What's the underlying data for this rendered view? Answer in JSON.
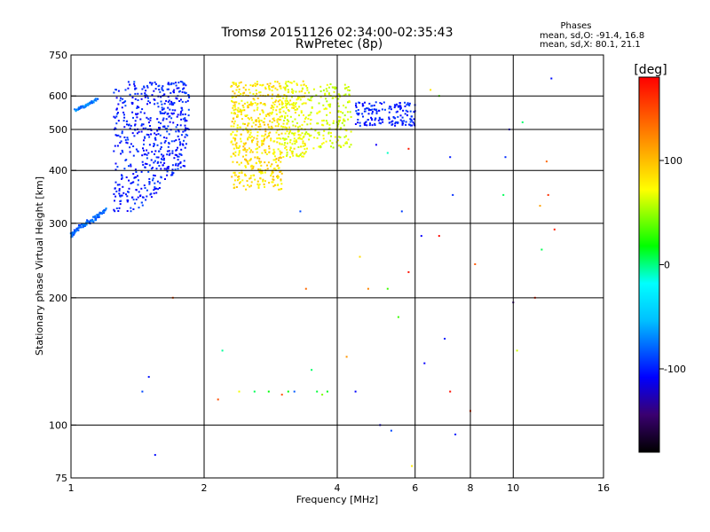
{
  "chart_data": {
    "type": "scatter",
    "title": "Tromsø 20151126 02:34:00-02:35:43",
    "subtitle": "RwPretec (8p)",
    "xlabel": "Frequency [MHz]",
    "ylabel": "Stationary phase Virtual Height [km]",
    "x_scale": "log2",
    "y_scale": "log",
    "xlim": [
      1,
      16
    ],
    "ylim": [
      75,
      750
    ],
    "x_ticks": [
      1,
      2,
      4,
      6,
      8,
      10,
      16
    ],
    "x_grid": [
      1,
      2,
      4,
      6,
      8,
      10,
      16
    ],
    "y_ticks": [
      75,
      100,
      200,
      300,
      400,
      500,
      600,
      750
    ],
    "y_grid": [
      100,
      200,
      300,
      400,
      500,
      600
    ],
    "grid": true,
    "stats_title": "Phases",
    "stats_lines": [
      "mean, sd,O: -91.4, 16.8",
      "mean, sd,X:  80.1, 21.1"
    ],
    "colorbar": {
      "label": "[deg]",
      "min": -180,
      "max": 180,
      "ticks": [
        -100,
        0,
        100
      ],
      "tick_labels": [
        "-100",
        "0",
        "100"
      ]
    },
    "traces": [
      {
        "phase": -100,
        "points": [
          [
            1.0,
            280
          ],
          [
            1.02,
            288
          ],
          [
            1.05,
            294
          ],
          [
            1.08,
            300
          ],
          [
            1.12,
            306
          ],
          [
            1.16,
            314
          ],
          [
            1.2,
            324
          ]
        ]
      },
      {
        "phase": -90,
        "points": [
          [
            1.02,
            555
          ],
          [
            1.06,
            565
          ],
          [
            1.1,
            575
          ],
          [
            1.15,
            590
          ]
        ]
      },
      {
        "phase": -120,
        "region": [
          1.25,
          1.85,
          320,
          650
        ],
        "n": 560
      },
      {
        "phase": 110,
        "region": [
          2.3,
          3.0,
          360,
          650
        ],
        "n": 520
      },
      {
        "phase": 100,
        "region": [
          3.0,
          3.4,
          430,
          650
        ],
        "n": 200
      },
      {
        "phase": 90,
        "region": [
          3.4,
          4.3,
          450,
          640
        ],
        "n": 180
      },
      {
        "phase": -120,
        "region": [
          4.4,
          6.0,
          510,
          580
        ],
        "n": 160
      }
    ],
    "scattered_points": [
      {
        "x": 1.45,
        "y": 120,
        "phase": -120
      },
      {
        "x": 1.5,
        "y": 130,
        "phase": -120
      },
      {
        "x": 1.55,
        "y": 85,
        "phase": -120
      },
      {
        "x": 1.7,
        "y": 200,
        "phase": 150
      },
      {
        "x": 2.15,
        "y": 115,
        "phase": 160
      },
      {
        "x": 2.2,
        "y": 150,
        "phase": -20
      },
      {
        "x": 2.4,
        "y": 120,
        "phase": 100
      },
      {
        "x": 2.6,
        "y": 120,
        "phase": 0
      },
      {
        "x": 2.8,
        "y": 120,
        "phase": 30
      },
      {
        "x": 3.0,
        "y": 118,
        "phase": 160
      },
      {
        "x": 3.1,
        "y": 120,
        "phase": 10
      },
      {
        "x": 3.2,
        "y": 120,
        "phase": -100
      },
      {
        "x": 3.3,
        "y": 320,
        "phase": -120
      },
      {
        "x": 3.4,
        "y": 210,
        "phase": 160
      },
      {
        "x": 3.5,
        "y": 135,
        "phase": -10
      },
      {
        "x": 3.6,
        "y": 120,
        "phase": 20
      },
      {
        "x": 3.7,
        "y": 118,
        "phase": 50
      },
      {
        "x": 3.8,
        "y": 120,
        "phase": 10
      },
      {
        "x": 4.2,
        "y": 145,
        "phase": 150
      },
      {
        "x": 4.4,
        "y": 120,
        "phase": -120
      },
      {
        "x": 4.5,
        "y": 250,
        "phase": 110
      },
      {
        "x": 4.7,
        "y": 210,
        "phase": 150
      },
      {
        "x": 5.0,
        "y": 100,
        "phase": -120
      },
      {
        "x": 5.2,
        "y": 210,
        "phase": 30
      },
      {
        "x": 5.3,
        "y": 97,
        "phase": -120
      },
      {
        "x": 5.5,
        "y": 180,
        "phase": 50
      },
      {
        "x": 5.6,
        "y": 320,
        "phase": -120
      },
      {
        "x": 5.8,
        "y": 230,
        "phase": 160
      },
      {
        "x": 5.9,
        "y": 80,
        "phase": 110
      },
      {
        "x": 6.2,
        "y": 280,
        "phase": -120
      },
      {
        "x": 6.3,
        "y": 140,
        "phase": -120
      },
      {
        "x": 6.8,
        "y": 280,
        "phase": 170
      },
      {
        "x": 7.0,
        "y": 160,
        "phase": -120
      },
      {
        "x": 7.2,
        "y": 120,
        "phase": 170
      },
      {
        "x": 7.3,
        "y": 350,
        "phase": -120
      },
      {
        "x": 7.4,
        "y": 95,
        "phase": -120
      },
      {
        "x": 8.0,
        "y": 108,
        "phase": 170
      },
      {
        "x": 8.2,
        "y": 240,
        "phase": 150
      },
      {
        "x": 9.5,
        "y": 350,
        "phase": 0
      },
      {
        "x": 9.6,
        "y": 430,
        "phase": -120
      },
      {
        "x": 9.8,
        "y": 500,
        "phase": -130
      },
      {
        "x": 10.0,
        "y": 195,
        "phase": -150
      },
      {
        "x": 10.2,
        "y": 150,
        "phase": 100
      },
      {
        "x": 10.5,
        "y": 520,
        "phase": -20
      },
      {
        "x": 11.2,
        "y": 200,
        "phase": 170
      },
      {
        "x": 11.5,
        "y": 330,
        "phase": 120
      },
      {
        "x": 11.6,
        "y": 260,
        "phase": 0
      },
      {
        "x": 11.9,
        "y": 420,
        "phase": 160
      },
      {
        "x": 12.0,
        "y": 350,
        "phase": 170
      },
      {
        "x": 12.2,
        "y": 660,
        "phase": -120
      },
      {
        "x": 12.4,
        "y": 290,
        "phase": 170
      },
      {
        "x": 6.5,
        "y": 620,
        "phase": 110
      },
      {
        "x": 6.8,
        "y": 600,
        "phase": 60
      },
      {
        "x": 5.8,
        "y": 450,
        "phase": 160
      },
      {
        "x": 5.2,
        "y": 440,
        "phase": -30
      },
      {
        "x": 4.9,
        "y": 460,
        "phase": -120
      },
      {
        "x": 7.2,
        "y": 430,
        "phase": -120
      }
    ]
  }
}
